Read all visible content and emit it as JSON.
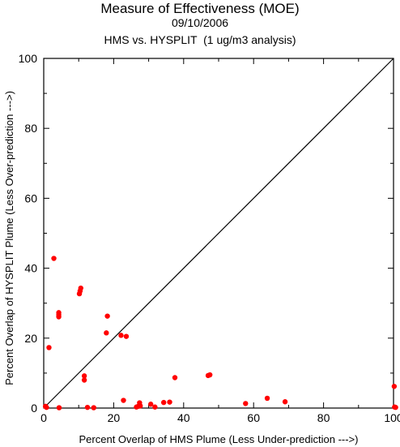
{
  "chart_data": {
    "type": "scatter",
    "title": "Measure of Effectiveness (MOE)",
    "subtitle_date": "09/10/2006",
    "subtitle_analysis": "HMS vs. HYSPLIT  (1 ug/m3 analysis)",
    "xlabel": "Percent Overlap of HMS Plume (Less Under-prediction --->)",
    "ylabel": "Percent Overlap of HYSPLIT Plume (Less Over-prediction --->)",
    "xlim": [
      0,
      100
    ],
    "ylim": [
      0,
      100
    ],
    "xticks": [
      0,
      20,
      40,
      60,
      80,
      100
    ],
    "yticks": [
      0,
      20,
      40,
      60,
      80,
      100
    ],
    "reference_line": "y = x",
    "point_color": "#ff0000",
    "points": [
      {
        "x": 0.5,
        "y": 0.5
      },
      {
        "x": 0.8,
        "y": 0.2
      },
      {
        "x": 1.5,
        "y": 17.3
      },
      {
        "x": 2.9,
        "y": 42.8
      },
      {
        "x": 4.3,
        "y": 27.3
      },
      {
        "x": 4.3,
        "y": 26.7
      },
      {
        "x": 4.3,
        "y": 26.1
      },
      {
        "x": 4.4,
        "y": 0.1
      },
      {
        "x": 10.2,
        "y": 32.7
      },
      {
        "x": 10.4,
        "y": 33.5
      },
      {
        "x": 10.6,
        "y": 34.3
      },
      {
        "x": 11.6,
        "y": 9.2
      },
      {
        "x": 11.6,
        "y": 8.0
      },
      {
        "x": 12.5,
        "y": 0.2
      },
      {
        "x": 14.3,
        "y": 0.1
      },
      {
        "x": 17.9,
        "y": 21.5
      },
      {
        "x": 18.2,
        "y": 26.3
      },
      {
        "x": 22.1,
        "y": 20.8
      },
      {
        "x": 23.6,
        "y": 20.5
      },
      {
        "x": 22.8,
        "y": 2.2
      },
      {
        "x": 26.5,
        "y": 0.3
      },
      {
        "x": 27.0,
        "y": 0.5
      },
      {
        "x": 27.4,
        "y": 1.5
      },
      {
        "x": 27.6,
        "y": 0.6
      },
      {
        "x": 30.6,
        "y": 1.1
      },
      {
        "x": 31.8,
        "y": 0.3
      },
      {
        "x": 34.3,
        "y": 1.6
      },
      {
        "x": 36.0,
        "y": 1.7
      },
      {
        "x": 37.5,
        "y": 8.7
      },
      {
        "x": 47.0,
        "y": 9.3
      },
      {
        "x": 47.5,
        "y": 9.5
      },
      {
        "x": 57.7,
        "y": 1.3
      },
      {
        "x": 63.9,
        "y": 2.8
      },
      {
        "x": 69.0,
        "y": 1.8
      },
      {
        "x": 100.2,
        "y": 6.2
      },
      {
        "x": 100.3,
        "y": 0.3
      },
      {
        "x": 100.6,
        "y": 0.2
      }
    ]
  }
}
